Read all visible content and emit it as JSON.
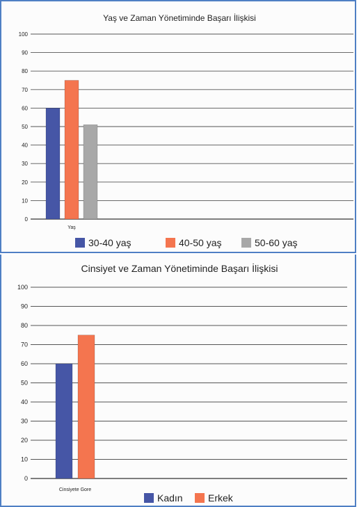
{
  "chart_data": [
    {
      "type": "bar",
      "title": "Yaş ve Zaman Yönetiminde Başarı İlişkisi",
      "categories": [
        "Yaş"
      ],
      "series": [
        {
          "name": "30-40 yaş",
          "values": [
            60
          ]
        },
        {
          "name": "40-50 yaş",
          "values": [
            75
          ]
        },
        {
          "name": "50-60 yaş",
          "values": [
            51
          ]
        }
      ],
      "xlabel": "",
      "ylabel": "",
      "ylim": [
        0,
        100
      ],
      "yticks": [
        0,
        10,
        20,
        30,
        40,
        50,
        60,
        70,
        80,
        90,
        100
      ],
      "grid": true,
      "legend_position": "bottom",
      "colors": [
        "#4656a6",
        "#f4754f",
        "#a8a8a8"
      ]
    },
    {
      "type": "bar",
      "title": "Cinsiyet ve Zaman Yönetiminde Başarı İlişkisi",
      "categories": [
        "Cinsiyete Gore"
      ],
      "series": [
        {
          "name": "Kadın",
          "values": [
            60
          ]
        },
        {
          "name": "Erkek",
          "values": [
            75
          ]
        }
      ],
      "xlabel": "",
      "ylabel": "",
      "ylim": [
        0,
        100
      ],
      "yticks": [
        0,
        10,
        20,
        30,
        40,
        50,
        60,
        70,
        80,
        90,
        100
      ],
      "grid": true,
      "legend_position": "bottom",
      "colors": [
        "#4656a6",
        "#f4754f"
      ]
    }
  ]
}
